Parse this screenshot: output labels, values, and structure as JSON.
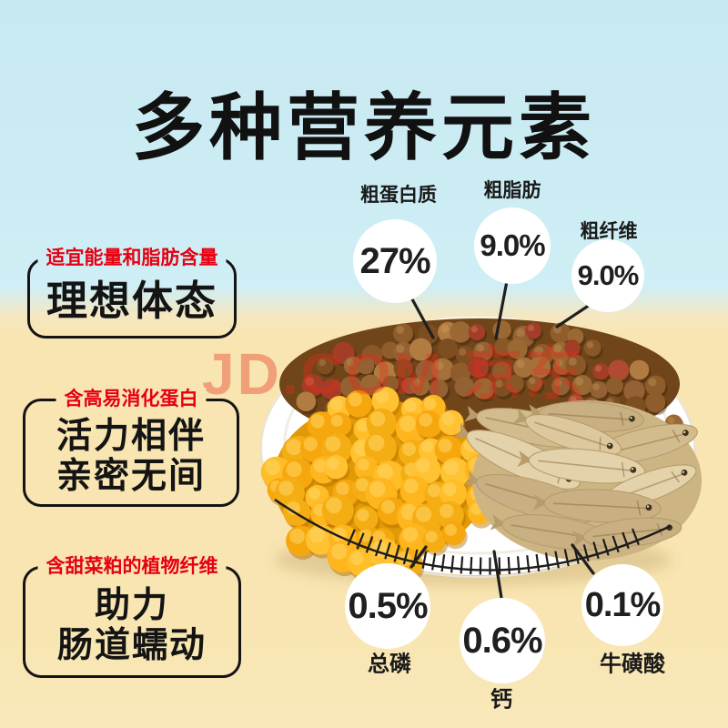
{
  "title": "多种营养元素",
  "watermark": "JD.COM 京东",
  "colors": {
    "bg_top": "#cfeef5",
    "bg_bottom": "#f8e5b1",
    "accent_red": "#e60012",
    "text_black": "#141414",
    "bubble_bg": "#ffffff"
  },
  "feature_boxes": [
    {
      "tag": "适宜能量和脂肪含量",
      "lines": [
        "理想体态"
      ]
    },
    {
      "tag": "含高易消化蛋白",
      "lines": [
        "活力相伴",
        "亲密无间"
      ]
    },
    {
      "tag": "含甜菜粕的植物纤维",
      "lines": [
        "助力",
        "肠道蠕动"
      ]
    }
  ],
  "nutrients_top": [
    {
      "label": "粗蛋白质",
      "value": "27%"
    },
    {
      "label": "粗脂肪",
      "value": "9.0%"
    },
    {
      "label": "粗纤维",
      "value": "9.0%"
    }
  ],
  "nutrients_bottom": [
    {
      "label": "总磷",
      "value": "0.5%"
    },
    {
      "label": "钙",
      "value": "0.6%"
    },
    {
      "label": "牛磺酸",
      "value": "0.1%"
    }
  ]
}
